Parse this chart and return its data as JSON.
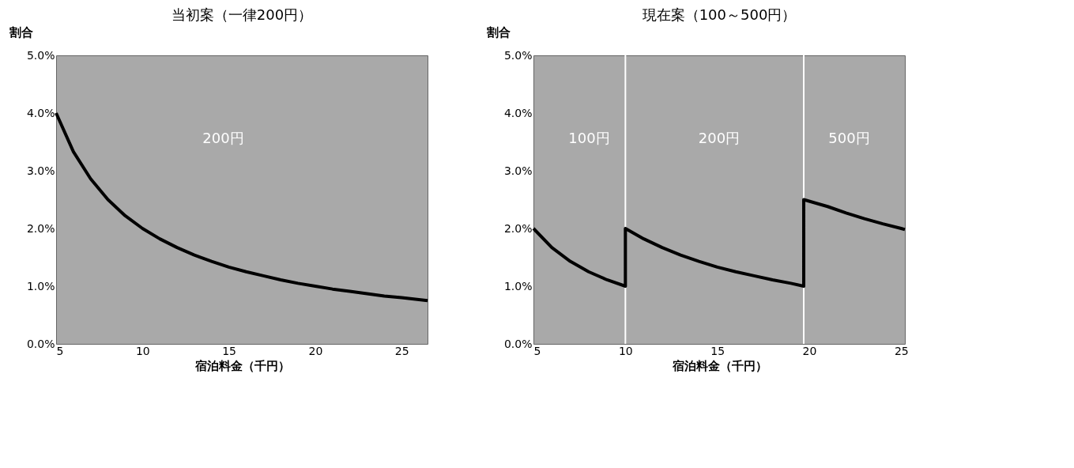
{
  "chart_data": [
    {
      "type": "line",
      "title": "当初案（一律200円）",
      "xlabel": "宿泊料金（千円）",
      "ylabel": "割合",
      "x": [
        5,
        6,
        7,
        8,
        9,
        10,
        11,
        12,
        13,
        14,
        15,
        16,
        17,
        18,
        19,
        20,
        21,
        22,
        23,
        24,
        25,
        26.5
      ],
      "series": [
        {
          "color": "#000000",
          "values": [
            4.0,
            3.33,
            2.86,
            2.5,
            2.22,
            2.0,
            1.82,
            1.67,
            1.54,
            1.43,
            1.33,
            1.25,
            1.18,
            1.11,
            1.05,
            1.0,
            0.95,
            0.91,
            0.87,
            0.83,
            0.8,
            0.75
          ]
        }
      ],
      "xlim": [
        5,
        26.5
      ],
      "xticks": [
        5,
        10,
        15,
        20,
        25
      ],
      "ylim": [
        0,
        5
      ],
      "yticks": [
        {
          "value": 0,
          "label": "0.0%"
        },
        {
          "value": 1,
          "label": "1.0%"
        },
        {
          "value": 2,
          "label": "2.0%"
        },
        {
          "value": 3,
          "label": "3.0%"
        },
        {
          "value": 4,
          "label": "4.0%"
        },
        {
          "value": 5,
          "label": "5.0%"
        }
      ],
      "annotations": [
        "200円"
      ],
      "grid": false
    },
    {
      "type": "line",
      "title": "現在案（100～500円）",
      "xlabel": "宿泊料金（千円）",
      "ylabel": "割合",
      "x": [
        5,
        6,
        7,
        8,
        9,
        10,
        10,
        11,
        12,
        13,
        14,
        15,
        16,
        17,
        18,
        19,
        19.7,
        19.7,
        21,
        22,
        23,
        24,
        25,
        25.2
      ],
      "series": [
        {
          "color": "#000000",
          "values": [
            2.0,
            1.67,
            1.43,
            1.25,
            1.11,
            1.0,
            2.0,
            1.82,
            1.67,
            1.54,
            1.43,
            1.33,
            1.25,
            1.18,
            1.11,
            1.05,
            1.0,
            2.5,
            2.38,
            2.27,
            2.17,
            2.08,
            2.0,
            1.98
          ]
        }
      ],
      "xlim": [
        5,
        25.2
      ],
      "xticks": [
        5,
        10,
        15,
        20,
        25
      ],
      "ylim": [
        0,
        5
      ],
      "yticks": [
        {
          "value": 0,
          "label": "0.0%"
        },
        {
          "value": 1,
          "label": "1.0%"
        },
        {
          "value": 2,
          "label": "2.0%"
        },
        {
          "value": 3,
          "label": "3.0%"
        },
        {
          "value": 4,
          "label": "4.0%"
        },
        {
          "value": 5,
          "label": "5.0%"
        }
      ],
      "ref_lines": [
        {
          "axis": "x",
          "value": 10,
          "color": "#ffffff"
        },
        {
          "axis": "x",
          "value": 19.7,
          "color": "#ffffff"
        }
      ],
      "annotations": [
        "100円",
        "200円",
        "500円"
      ],
      "grid": false
    }
  ]
}
